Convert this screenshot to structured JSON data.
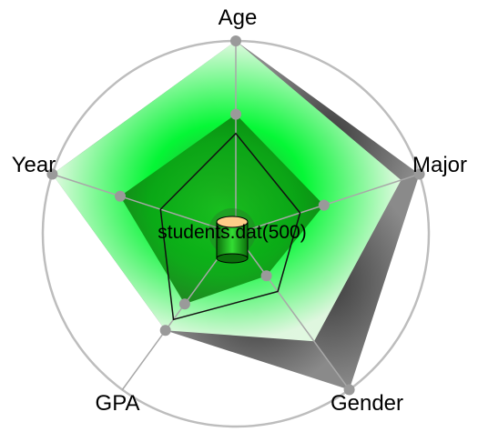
{
  "center": {
    "label": "students.dat(500)",
    "icon": "database-cylinder-icon"
  },
  "chart_data": {
    "type": "radar",
    "axes": [
      "Age",
      "Major",
      "Gender",
      "GPA",
      "Year"
    ],
    "outer_range": [
      1.0,
      1.0,
      1.0,
      0.62,
      1.0
    ],
    "inner_range": [
      0.62,
      0.48,
      0.27,
      0.45,
      0.63
    ],
    "outline": [
      0.52,
      0.35,
      0.37,
      0.55,
      0.41
    ],
    "grid": "circle"
  },
  "colors": {
    "gray_fill": "#6e6e6e",
    "green": "#00ff33",
    "highlight": "#e6ffe6",
    "ring": "#bdbdbd",
    "marker": "#9a9a9a",
    "outline": "#111111",
    "cylinder_top": "#ffcc88"
  }
}
